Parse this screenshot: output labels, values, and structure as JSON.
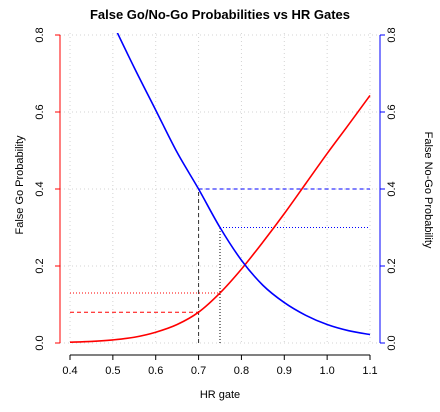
{
  "chart_data": {
    "type": "line",
    "title": "False Go/No-Go Probabilities vs HR Gates",
    "xlabel": "HR gate",
    "ylabel_left": "False Go Probability",
    "ylabel_right": "False No-Go Probability",
    "xlim": [
      0.4,
      1.1
    ],
    "ylim": [
      0.0,
      0.8
    ],
    "x_ticks": [
      "0.4",
      "0.5",
      "0.6",
      "0.7",
      "0.8",
      "0.9",
      "1.0",
      "1.1"
    ],
    "y_ticks_left": [
      "0.0",
      "0.2",
      "0.4",
      "0.6",
      "0.8"
    ],
    "y_ticks_right": [
      "0.0",
      "0.2",
      "0.4",
      "0.6",
      "0.8"
    ],
    "grid": true,
    "series": [
      {
        "axis": "left",
        "color": "#ff0000",
        "x": [
          0.4,
          0.45,
          0.5,
          0.55,
          0.6,
          0.65,
          0.7,
          0.75,
          0.8,
          0.85,
          0.9,
          0.95,
          1.0,
          1.05,
          1.1
        ],
        "y": [
          0.002,
          0.004,
          0.008,
          0.015,
          0.028,
          0.048,
          0.08,
          0.13,
          0.192,
          0.262,
          0.336,
          0.414,
          0.492,
          0.567,
          0.643
        ]
      },
      {
        "axis": "right",
        "color": "#0000ff",
        "x": [
          0.5,
          0.55,
          0.6,
          0.65,
          0.7,
          0.75,
          0.8,
          0.85,
          0.9,
          0.95,
          1.0,
          1.05,
          1.1
        ],
        "y": [
          0.83,
          0.715,
          0.605,
          0.495,
          0.4,
          0.3,
          0.215,
          0.15,
          0.105,
          0.072,
          0.048,
          0.032,
          0.022
        ]
      }
    ],
    "reference_lines": [
      {
        "color": "#ff0000",
        "style": "dashed",
        "x0": 0.4,
        "y0": 0.08,
        "x1": 0.7,
        "y1": 0.08
      },
      {
        "color": "#ff0000",
        "style": "dotted",
        "x0": 0.4,
        "y0": 0.13,
        "x1": 0.75,
        "y1": 0.13
      },
      {
        "color": "#333333",
        "style": "dashed",
        "x0": 0.7,
        "y0": 0.0,
        "x1": 0.7,
        "y1": 0.4
      },
      {
        "color": "#000000",
        "style": "dotted",
        "x0": 0.75,
        "y0": 0.0,
        "x1": 0.75,
        "y1": 0.3
      },
      {
        "color": "#0000ff",
        "style": "dashed",
        "x0": 0.7,
        "y0": 0.4,
        "x1": 1.1,
        "y1": 0.4
      },
      {
        "color": "#0000ff",
        "style": "dotted",
        "x0": 0.75,
        "y0": 0.3,
        "x1": 1.1,
        "y1": 0.3
      }
    ],
    "colors": {
      "left_axis": "#ff0000",
      "right_axis": "#0000ff",
      "grid": "#d3d3d3"
    }
  }
}
